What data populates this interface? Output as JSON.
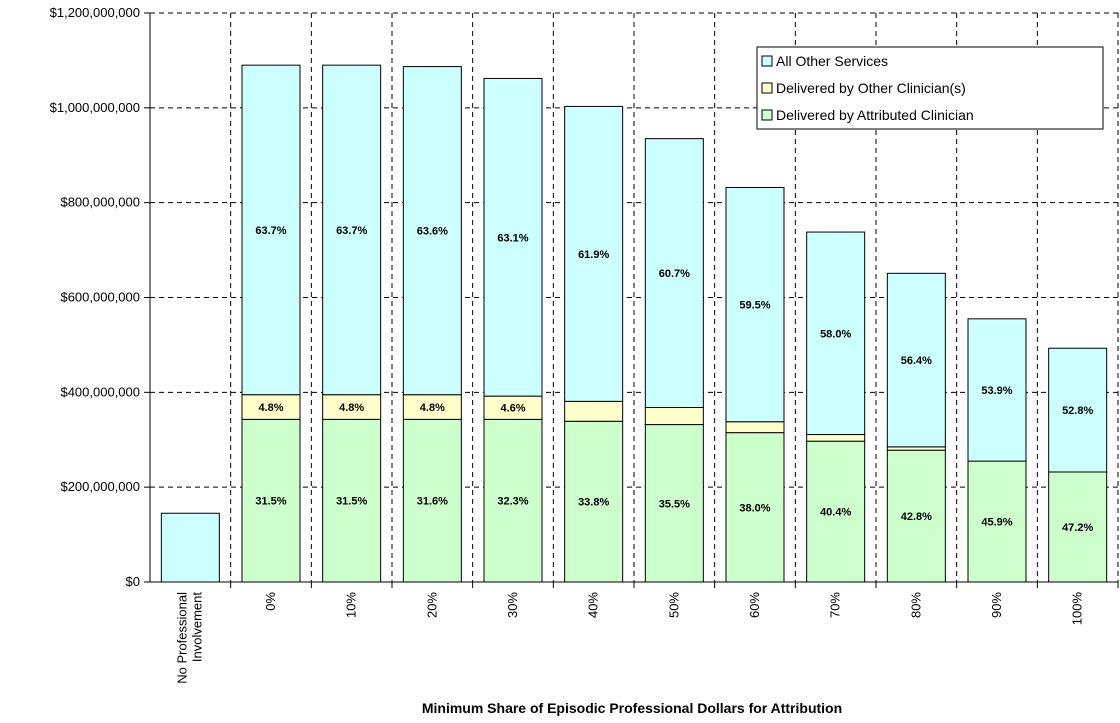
{
  "chart_data": {
    "type": "bar",
    "stacked": true,
    "title": "",
    "xlabel": "Minimum Share of Episodic Professional Dollars for Attribution",
    "ylabel": "",
    "ylim": [
      0,
      1200000000
    ],
    "y_ticks": [
      "$0",
      "$200,000,000",
      "$400,000,000",
      "$600,000,000",
      "$800,000,000",
      "$1,000,000,000",
      "$1,200,000,000"
    ],
    "y_tick_values": [
      0,
      200000000,
      400000000,
      600000000,
      800000000,
      1000000000,
      1200000000
    ],
    "grid": true,
    "legend_position": "top-right",
    "categories": [
      "No Professional Involvement",
      "0%",
      "10%",
      "20%",
      "30%",
      "40%",
      "50%",
      "60%",
      "70%",
      "80%",
      "90%",
      "100%"
    ],
    "series": [
      {
        "name": "Delivered by Attributed Clinician",
        "color": "#ccffcc",
        "values": [
          0,
          343000000,
          343000000,
          343000000,
          343000000,
          339000000,
          332000000,
          315000000,
          297000000,
          278000000,
          255000000,
          232000000
        ],
        "labels": [
          "",
          "31.5%",
          "31.5%",
          "31.6%",
          "32.3%",
          "33.8%",
          "35.5%",
          "38.0%",
          "40.4%",
          "42.8%",
          "45.9%",
          "47.2%"
        ]
      },
      {
        "name": "Delivered by Other Clinician(s)",
        "color": "#ffffcc",
        "values": [
          0,
          52000000,
          52000000,
          52000000,
          49000000,
          42000000,
          36000000,
          23000000,
          14000000,
          7000000,
          0,
          0
        ],
        "labels": [
          "",
          "4.8%",
          "4.8%",
          "4.8%",
          "4.6%",
          "",
          "",
          "",
          "",
          "",
          "",
          ""
        ]
      },
      {
        "name": "All Other Services",
        "color": "#ccffff",
        "values": [
          145000000,
          695000000,
          695000000,
          692000000,
          670000000,
          622000000,
          567000000,
          494000000,
          427000000,
          366000000,
          300000000,
          261000000
        ],
        "labels": [
          "",
          "63.7%",
          "63.7%",
          "63.6%",
          "63.1%",
          "61.9%",
          "60.7%",
          "59.5%",
          "58.0%",
          "56.4%",
          "53.9%",
          "52.8%"
        ]
      }
    ],
    "legend_order": [
      "All Other Services",
      "Delivered by Other Clinician(s)",
      "Delivered by Attributed Clinician"
    ]
  }
}
